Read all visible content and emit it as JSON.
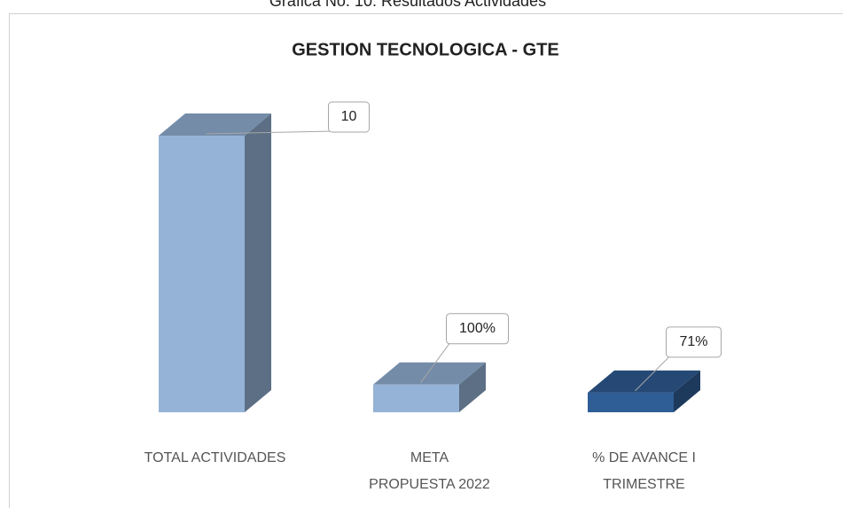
{
  "chart_data": {
    "type": "bar3d",
    "caption": "Gráfica No. 10: Resultados Actividades",
    "title": "GESTION TECNOLOGICA - GTE",
    "categories": [
      "TOTAL ACTIVIDADES",
      "META PROPUESTA 2022",
      "% DE AVANCE I TRIMESTRE"
    ],
    "values": [
      10,
      1,
      0.71
    ],
    "value_labels": [
      "10",
      "100%",
      "71%"
    ],
    "colors": [
      "#95b3d7",
      "#95b3d7",
      "#2f5d95"
    ]
  }
}
